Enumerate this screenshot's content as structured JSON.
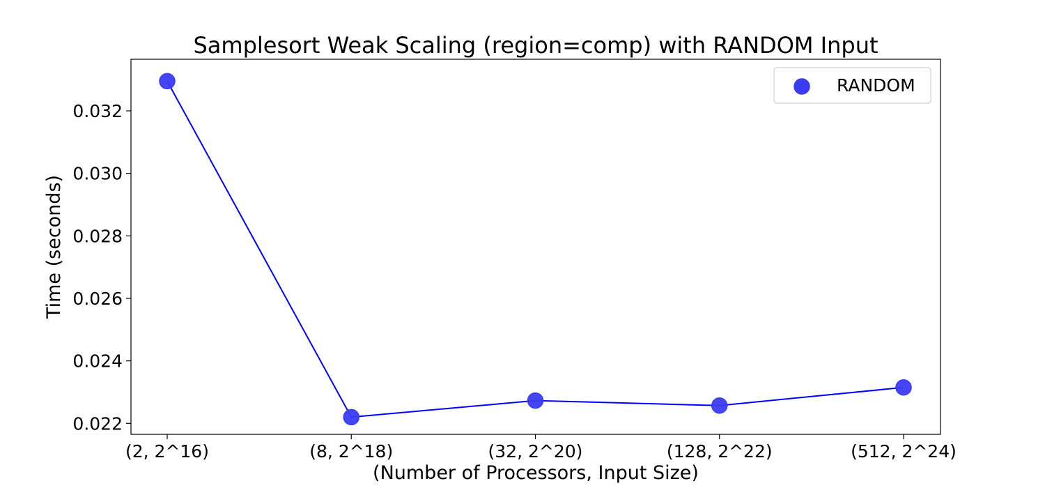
{
  "chart_data": {
    "type": "line",
    "title": "Samplesort Weak Scaling (region=comp) with RANDOM Input",
    "xlabel": "(Number of Processors, Input Size)",
    "ylabel": "Time (seconds)",
    "categories": [
      "(2, 2^16)",
      "(8, 2^18)",
      "(32, 2^20)",
      "(128, 2^22)",
      "(512, 2^24)"
    ],
    "series": [
      {
        "name": "RANDOM",
        "values": [
          0.03295,
          0.0222,
          0.02273,
          0.02257,
          0.02315
        ],
        "color": "#0000ff",
        "marker_color": "#3b3bf2"
      }
    ],
    "ylim": [
      0.02165,
      0.03365
    ],
    "yticks": [
      0.022,
      0.024,
      0.026,
      0.028,
      0.03,
      0.032
    ],
    "ytick_labels": [
      "0.022",
      "0.024",
      "0.026",
      "0.028",
      "0.030",
      "0.032"
    ],
    "grid": false,
    "legend_position": "top-right"
  }
}
